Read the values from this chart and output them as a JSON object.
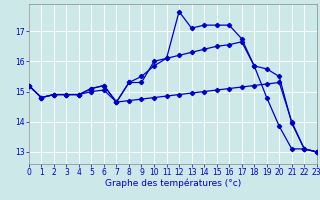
{
  "xlabel": "Graphe des températures (°c)",
  "bg_color": "#cce8e8",
  "line_color": "#0000cc",
  "xlim": [
    0,
    23
  ],
  "ylim": [
    12.6,
    17.9
  ],
  "yticks": [
    13,
    14,
    15,
    16,
    17
  ],
  "xticks": [
    0,
    1,
    2,
    3,
    4,
    5,
    6,
    7,
    8,
    9,
    10,
    11,
    12,
    13,
    14,
    15,
    16,
    17,
    18,
    19,
    20,
    21,
    22,
    23
  ],
  "line1_x": [
    0,
    1,
    2,
    3,
    4,
    5,
    6,
    7,
    8,
    9,
    10,
    11,
    12,
    13,
    14,
    15,
    16,
    17,
    18,
    19,
    20,
    21,
    22,
    23
  ],
  "line1_y": [
    15.2,
    14.8,
    14.9,
    14.9,
    14.9,
    15.1,
    15.2,
    14.65,
    15.3,
    15.3,
    16.0,
    16.1,
    17.65,
    17.1,
    17.2,
    17.2,
    17.2,
    16.75,
    15.85,
    14.8,
    13.85,
    13.1,
    13.1,
    13.0
  ],
  "line2_x": [
    0,
    1,
    2,
    3,
    4,
    5,
    6,
    7,
    8,
    9,
    10,
    11,
    12,
    13,
    14,
    15,
    16,
    17,
    18,
    19,
    20,
    21,
    22,
    23
  ],
  "line2_y": [
    15.2,
    14.8,
    14.9,
    14.9,
    14.9,
    15.1,
    15.2,
    14.65,
    15.3,
    15.5,
    15.85,
    16.1,
    16.2,
    16.3,
    16.4,
    16.5,
    16.55,
    16.65,
    15.85,
    15.75,
    15.5,
    13.95,
    13.1,
    13.0
  ],
  "line3_x": [
    0,
    1,
    2,
    3,
    4,
    5,
    6,
    7,
    8,
    9,
    10,
    11,
    12,
    13,
    14,
    15,
    16,
    17,
    18,
    19,
    20,
    21,
    22,
    23
  ],
  "line3_y": [
    15.2,
    14.8,
    14.9,
    14.9,
    14.9,
    15.0,
    15.05,
    14.65,
    14.7,
    14.75,
    14.8,
    14.85,
    14.9,
    14.95,
    15.0,
    15.05,
    15.1,
    15.15,
    15.2,
    15.25,
    15.3,
    14.0,
    13.1,
    13.0
  ]
}
